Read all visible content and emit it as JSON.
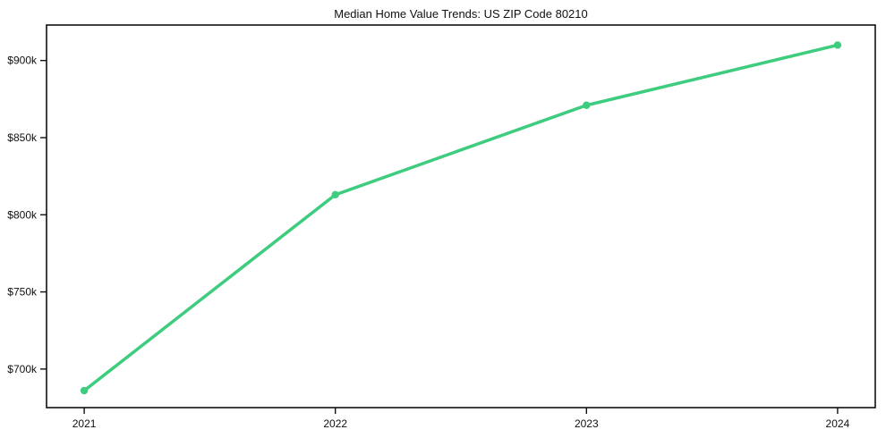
{
  "figure": {
    "background": "#ffffff"
  },
  "chart_data": {
    "type": "line",
    "title": "Median Home Value Trends: US ZIP Code 80210",
    "categories": [
      "2021",
      "2022",
      "2023",
      "2024"
    ],
    "series": [
      {
        "name": "Median Home Value",
        "values": [
          686000,
          813000,
          871000,
          910000
        ]
      }
    ],
    "xlabel": "",
    "ylabel": "",
    "yticks": [
      {
        "value": 700000,
        "label": "$700k"
      },
      {
        "value": 750000,
        "label": "$750k"
      },
      {
        "value": 800000,
        "label": "$800k"
      },
      {
        "value": 850000,
        "label": "$850k"
      },
      {
        "value": 900000,
        "label": "$900k"
      }
    ],
    "ylim": [
      675000,
      923000
    ],
    "x_margin": 0.15,
    "grid": false,
    "legend": "none",
    "line_color": "#3ecc7e",
    "marker": "circle",
    "axis_color": "#111111",
    "text_color": "#111111"
  }
}
